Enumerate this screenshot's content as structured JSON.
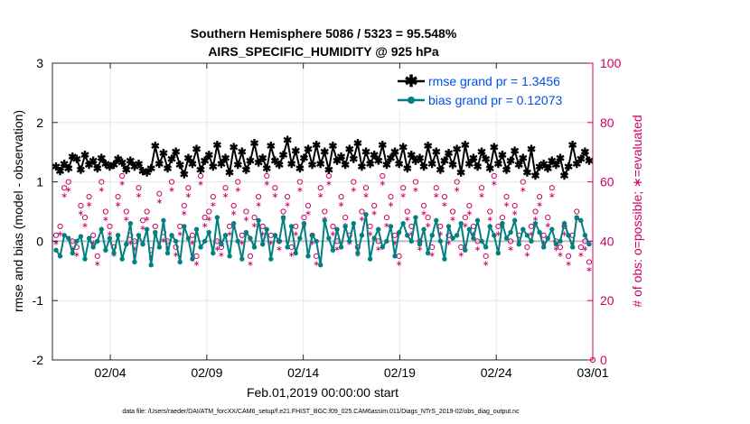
{
  "chart_data": {
    "type": "line",
    "title": "Southern Hemisphere 5086 / 5323 = 95.548%",
    "subtitle": "AIRS_SPECIFIC_HUMIDITY @ 925 hPa",
    "xlabel": "Feb.01,2019 00:00:00 start",
    "ylabel": "rmse and bias (model - observation)",
    "ylabel_right": "# of obs: o=possible; ∗=evaluated",
    "ylim": [
      -2,
      3
    ],
    "ylim_right": [
      0,
      100
    ],
    "yticks": [
      "-2",
      "-1",
      "0",
      "1",
      "2",
      "3"
    ],
    "yticks_right": [
      "0",
      "20",
      "40",
      "60",
      "80",
      "100"
    ],
    "xlim": [
      1,
      29
    ],
    "xticks": [
      {
        "pos": 4,
        "label": "02/04"
      },
      {
        "pos": 9,
        "label": "02/09"
      },
      {
        "pos": 14,
        "label": "02/14"
      },
      {
        "pos": 19,
        "label": "02/19"
      },
      {
        "pos": 24,
        "label": "02/24"
      },
      {
        "pos": 29,
        "label": "03/01"
      }
    ],
    "grid": true,
    "legend_position": "top-right",
    "colors": {
      "rmse": "#000000",
      "bias": "#008080",
      "obs": "#cc0066",
      "zero": "#bbbbbb",
      "legend_text": "#0050e6"
    },
    "series": [
      {
        "name": "rmse grand pr = 1.3456",
        "values": [
          1.25,
          1.18,
          1.3,
          1.22,
          1.42,
          1.38,
          1.2,
          1.45,
          1.28,
          1.35,
          1.22,
          1.4,
          1.3,
          1.25,
          1.28,
          1.38,
          1.32,
          1.2,
          1.35,
          1.25,
          1.3,
          1.18,
          1.15,
          1.22,
          1.6,
          1.3,
          1.48,
          1.22,
          1.38,
          1.5,
          1.28,
          1.12,
          1.4,
          1.3,
          1.55,
          1.2,
          1.35,
          1.45,
          1.25,
          1.62,
          1.3,
          1.4,
          1.15,
          1.58,
          1.28,
          1.5,
          1.2,
          1.35,
          1.65,
          1.32,
          1.4,
          1.22,
          1.6,
          1.35,
          1.28,
          1.45,
          1.7,
          1.3,
          1.52,
          1.22,
          1.4,
          1.55,
          1.28,
          1.62,
          1.3,
          1.5,
          1.2,
          1.6,
          1.35,
          1.42,
          1.28,
          1.55,
          1.38,
          1.65,
          1.25,
          1.5,
          1.3,
          1.45,
          1.35,
          1.62,
          1.28,
          1.4,
          1.5,
          1.3,
          1.58,
          1.22,
          1.45,
          1.35,
          1.4,
          1.25,
          1.6,
          1.3,
          1.5,
          1.2,
          1.35,
          1.48,
          1.28,
          1.55,
          1.15,
          1.62,
          1.3,
          1.4,
          1.25,
          1.5,
          1.38,
          1.22,
          1.58,
          1.3,
          1.45,
          1.2,
          1.35,
          1.52,
          1.28,
          1.4,
          1.15,
          1.55,
          1.1,
          1.25,
          1.3,
          1.22,
          1.35,
          1.28,
          1.4,
          1.1,
          1.25,
          1.62,
          1.3,
          1.38,
          1.5,
          1.35
        ]
      },
      {
        "name": "bias grand pr = 0.12073",
        "values": [
          -0.15,
          -0.25,
          0.1,
          0.05,
          -0.2,
          0.0,
          0.08,
          -0.3,
          0.05,
          -0.1,
          0.0,
          0.2,
          -0.15,
          0.05,
          -0.2,
          0.1,
          -0.3,
          -0.05,
          0.3,
          -0.35,
          0.1,
          -0.05,
          0.2,
          -0.4,
          0.15,
          -0.1,
          0.35,
          -0.2,
          0.1,
          0.0,
          -0.35,
          0.25,
          0.05,
          -0.3,
          0.2,
          -0.1,
          0.0,
          0.15,
          -0.2,
          0.4,
          -0.05,
          0.1,
          -0.25,
          0.3,
          0.0,
          -0.3,
          0.15,
          0.05,
          -0.1,
          0.35,
          -0.05,
          0.2,
          -0.3,
          0.1,
          0.0,
          0.4,
          -0.1,
          0.25,
          -0.2,
          0.05,
          0.3,
          -0.25,
          0.1,
          0.0,
          -0.4,
          0.35,
          0.05,
          -0.15,
          0.2,
          -0.1,
          0.25,
          0.0,
          0.3,
          -0.2,
          0.1,
          0.45,
          -0.3,
          0.05,
          0.2,
          -0.1,
          0.0,
          0.25,
          -0.25,
          0.15,
          0.3,
          0.1,
          0.0,
          0.4,
          -0.05,
          0.2,
          -0.2,
          0.1,
          0.35,
          0.0,
          -0.3,
          0.25,
          0.05,
          0.1,
          0.3,
          -0.15,
          0.2,
          0.05,
          0.35,
          0.0,
          -0.1,
          0.25,
          0.1,
          -0.2,
          0.3,
          0.05,
          0.15,
          0.35,
          -0.05,
          0.2,
          0.1,
          0.0,
          0.3,
          0.15,
          -0.1,
          0.05,
          0.2,
          -0.05,
          0.0,
          0.3,
          0.1,
          -0.1,
          0.4,
          0.35,
          0.1,
          -0.05
        ]
      }
    ],
    "obs_possible": [
      42,
      45,
      58,
      60,
      40,
      38,
      52,
      48,
      55,
      42,
      35,
      60,
      50,
      45,
      38,
      55,
      62,
      50,
      42,
      40,
      58,
      47,
      50,
      37,
      45,
      56,
      43,
      40,
      60,
      38,
      45,
      52,
      58,
      42,
      35,
      62,
      48,
      50,
      55,
      40,
      38,
      58,
      45,
      52,
      60,
      42,
      50,
      35,
      48,
      55,
      45,
      62,
      42,
      58,
      40,
      50,
      55,
      38,
      45,
      60,
      48,
      52,
      42,
      35,
      58,
      50,
      62,
      45,
      40,
      55,
      48,
      42,
      60,
      38,
      50,
      58,
      45,
      52,
      40,
      62,
      48,
      55,
      42,
      35,
      58,
      50,
      45,
      60,
      40,
      52,
      48,
      38,
      58,
      45,
      55,
      42,
      50,
      60,
      38,
      48,
      52,
      45,
      40,
      58,
      35,
      50,
      62,
      45,
      48,
      55,
      40,
      52,
      42,
      60,
      38,
      45,
      50,
      55,
      42,
      48,
      58,
      40,
      38,
      45,
      35,
      42,
      50,
      38,
      40,
      33
    ]
  },
  "footnote": "data file: /Users/raeder/DAI/ATM_forcXX/CAM6_setup/f.e21.FHIST_BGC.f09_025.CAM6assim.011/Diags_NTrS_2019-02/obs_diag_output.nc"
}
